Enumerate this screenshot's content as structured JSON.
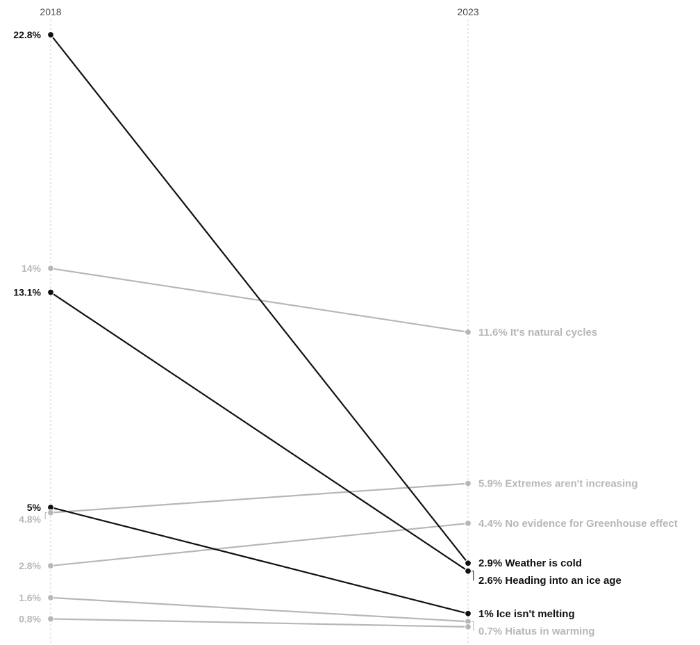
{
  "chart_data": {
    "type": "line",
    "subtype": "slope",
    "x": [
      "2018",
      "2023"
    ],
    "ylim": [
      0,
      22.8
    ],
    "grid": true,
    "colors": {
      "highlight": "#111111",
      "muted": "#b7b7b7"
    },
    "series": [
      {
        "name": "Weather is cold",
        "values": [
          22.8,
          2.9
        ],
        "label_2018": "22.8%",
        "label_2023": "2.9% Weather is cold",
        "highlight": true
      },
      {
        "name": "It's natural cycles",
        "values": [
          14,
          11.6
        ],
        "label_2018": "14%",
        "label_2023": "11.6% It's natural cycles",
        "highlight": false
      },
      {
        "name": "Heading into an ice age",
        "values": [
          13.1,
          2.6
        ],
        "label_2018": "13.1%",
        "label_2023": "2.6% Heading into an ice age",
        "highlight": true
      },
      {
        "name": "Ice isn't melting",
        "values": [
          5,
          1
        ],
        "label_2018": "5%",
        "label_2023": "1% Ice isn't melting",
        "highlight": true
      },
      {
        "name": "Extremes aren't increasing",
        "values": [
          4.8,
          5.9
        ],
        "label_2018": "4.8%",
        "label_2023": "5.9% Extremes aren't increasing",
        "highlight": false
      },
      {
        "name": "No evidence for Greenhouse effect",
        "values": [
          2.8,
          4.4
        ],
        "label_2018": "2.8%",
        "label_2023": "4.4% No evidence for Greenhouse effect",
        "highlight": false
      },
      {
        "name": "Hiatus in warming",
        "values": [
          1.6,
          0.7
        ],
        "label_2018": "1.6%",
        "label_2023": "0.7% Hiatus in warming",
        "highlight": false
      },
      {
        "name": "",
        "values": [
          0.8,
          0.5
        ],
        "label_2018": "0.8%",
        "label_2023": "",
        "highlight": false
      }
    ]
  }
}
